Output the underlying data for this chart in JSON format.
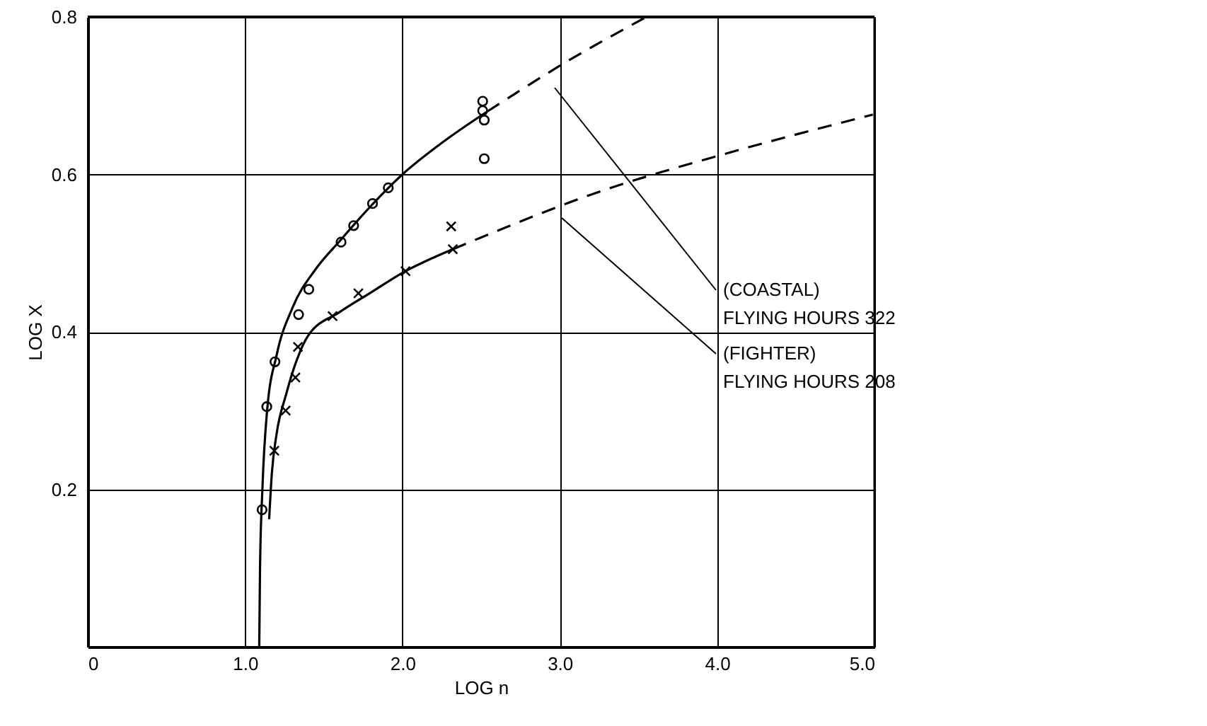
{
  "chart_data": {
    "type": "line",
    "xlabel": "LOG n",
    "ylabel": "LOG X",
    "xlim": [
      0,
      5
    ],
    "ylim": [
      0,
      0.8
    ],
    "xticks": [
      0,
      {
        "value": 1,
        "label": "1.0"
      },
      {
        "value": 2,
        "label": "2.0"
      },
      {
        "value": 3,
        "label": "3.0"
      },
      {
        "value": 4,
        "label": "4.0"
      },
      {
        "value": 5,
        "label": "5.0"
      }
    ],
    "yticks": [
      0.2,
      0.4,
      0.6,
      0.8
    ],
    "grid": true,
    "series": [
      {
        "type": "scatter",
        "marker": "circle",
        "color": "#000000",
        "x": [
          1.108,
          1.138,
          1.19,
          1.34,
          1.405,
          1.61,
          1.69,
          1.81,
          1.91,
          2.51,
          2.51,
          2.52,
          2.52
        ],
        "values": [
          0.174,
          0.305,
          0.362,
          0.422,
          0.454,
          0.514,
          0.535,
          0.563,
          0.583,
          0.693,
          0.681,
          0.669,
          0.62
        ]
      },
      {
        "line_style": "solid",
        "color": "#000000",
        "x": [
          1.09,
          1.095,
          1.11,
          1.14,
          1.2,
          1.3,
          1.45,
          1.6,
          1.8,
          2.0,
          2.25,
          2.54
        ],
        "values": [
          0.0,
          0.1,
          0.2,
          0.3,
          0.37,
          0.43,
          0.48,
          0.515,
          0.56,
          0.6,
          0.64,
          0.68
        ]
      },
      {
        "line_style": "dashed",
        "color": "#000000",
        "x": [
          2.54,
          3.0,
          3.55
        ],
        "values": [
          0.68,
          0.738,
          0.8
        ]
      },
      {
        "type": "scatter",
        "marker": "cross",
        "color": "#000000",
        "x": [
          1.186,
          1.258,
          1.32,
          1.336,
          1.556,
          1.72,
          2.02,
          2.31,
          2.32
        ],
        "values": [
          0.249,
          0.3,
          0.342,
          0.381,
          0.42,
          0.449,
          0.477,
          0.534,
          0.505
        ]
      },
      {
        "line_style": "solid",
        "color": "#000000",
        "x": [
          1.153,
          1.17,
          1.2,
          1.26,
          1.33,
          1.4,
          1.6,
          1.8,
          2.0,
          2.32
        ],
        "values": [
          0.162,
          0.22,
          0.27,
          0.32,
          0.365,
          0.395,
          0.425,
          0.45,
          0.475,
          0.505
        ]
      },
      {
        "line_style": "dashed",
        "color": "#000000",
        "x": [
          2.32,
          3.31,
          4.03,
          4.99
        ],
        "values": [
          0.505,
          0.582,
          0.625,
          0.676
        ]
      }
    ],
    "annotations": [
      "(COASTAL)\n          FLYING HOURS 322",
      "(FIGHTER)\n          FLYING HOURS 208"
    ]
  }
}
